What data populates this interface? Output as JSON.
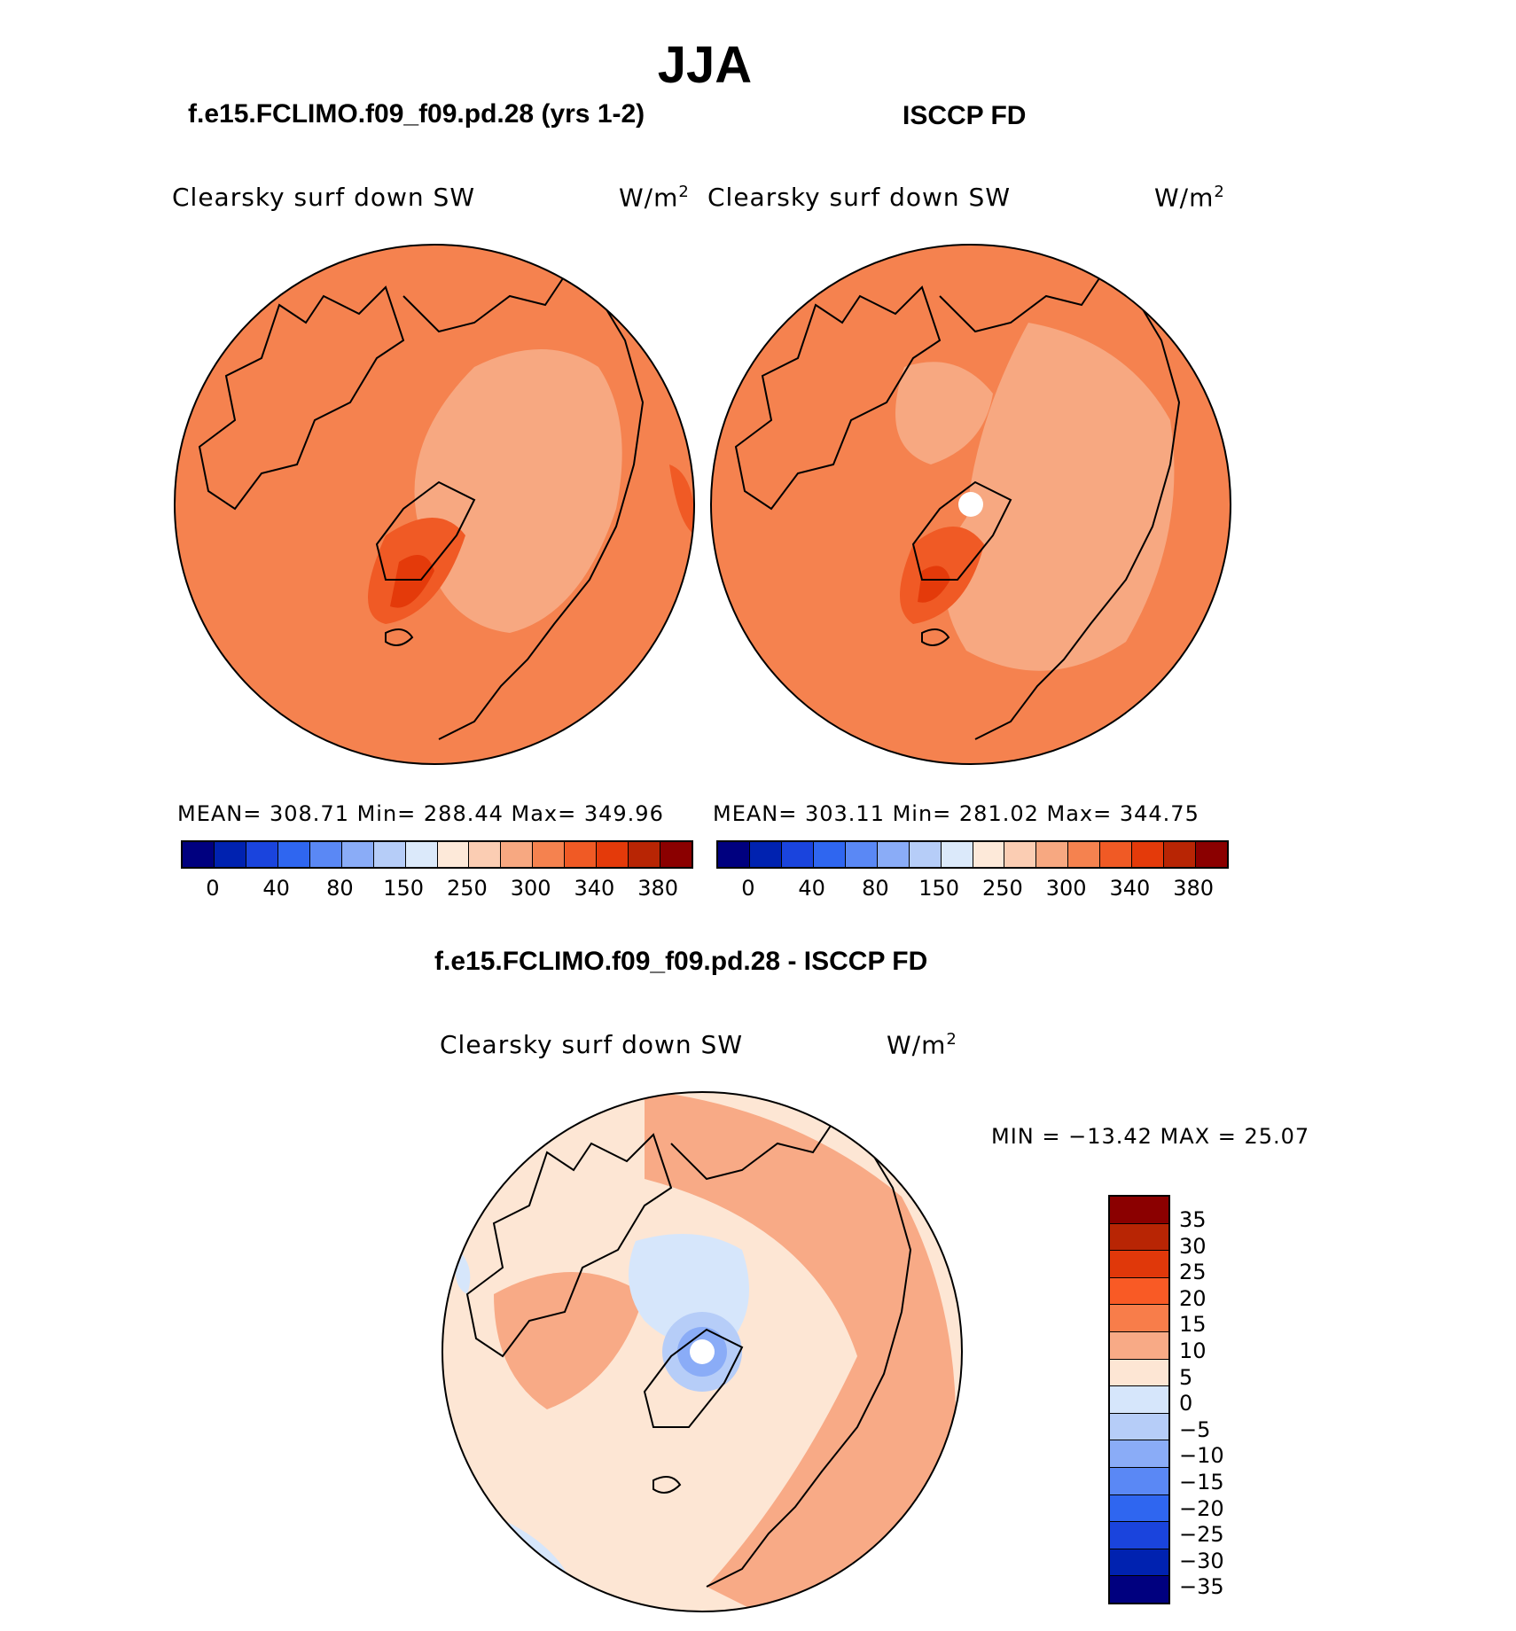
{
  "title": "JJA",
  "panels": [
    {
      "heading": "f.e15.FCLIMO.f09_f09.pd.28 (yrs 1-2)",
      "variable": "Clearsky surf down SW",
      "units_base": "W/m",
      "units_exp": "2",
      "stats": "MEAN=  308.71    Min=  288.44    Max=  349.96"
    },
    {
      "heading": "ISCCP FD",
      "variable": "Clearsky surf down SW",
      "units_base": "W/m",
      "units_exp": "2",
      "stats": "MEAN=  303.11    Min=  281.02    Max=  344.75"
    }
  ],
  "diff": {
    "heading": "f.e15.FCLIMO.f09_f09.pd.28 - ISCCP FD",
    "variable": "Clearsky surf down SW",
    "units_base": "W/m",
    "units_exp": "2",
    "minmax": "MIN = −13.42 MAX =   25.07"
  },
  "colorbar_main": {
    "colors": [
      "#00007f",
      "#0022b0",
      "#1a44dd",
      "#2f66f0",
      "#5a88f5",
      "#8aacf7",
      "#b6cdf8",
      "#dbe9fa",
      "#fde9d9",
      "#fbcdb3",
      "#f7a881",
      "#f5824f",
      "#f05a25",
      "#e43a0a",
      "#b82504",
      "#8b0000"
    ],
    "ticks": [
      "0",
      "40",
      "80",
      "150",
      "250",
      "300",
      "340",
      "380"
    ]
  },
  "colorbar_diff": {
    "colors": [
      "#8b0000",
      "#b82504",
      "#e0380a",
      "#f95a25",
      "#f87d4a",
      "#f8aa86",
      "#fde6d4",
      "#d6e6fb",
      "#b6cdf8",
      "#8aacf7",
      "#5a88f5",
      "#2f66f0",
      "#1a44dd",
      "#0022b0",
      "#00007f"
    ],
    "ticks": [
      "35",
      "30",
      "25",
      "20",
      "15",
      "10",
      "5",
      "0",
      "−5",
      "−10",
      "−15",
      "−20",
      "−25",
      "−30",
      "−35"
    ]
  }
}
